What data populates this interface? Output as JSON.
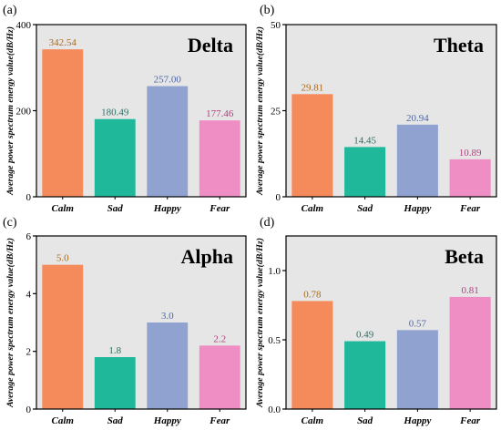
{
  "ylabel": "Average power spectrum energy value(dB/Hz)",
  "colors": {
    "background": "#e6e6e6",
    "bars": [
      "#f58a5b",
      "#1fb89a",
      "#8fa2d0",
      "#ef8ec4"
    ],
    "labels": [
      "#a86a1e",
      "#2d6f64",
      "#4f66a6",
      "#b0407f"
    ]
  },
  "chart_data": [
    {
      "type": "bar",
      "panel_label": "(a)",
      "title": "Delta",
      "categories": [
        "Calm",
        "Sad",
        "Happy",
        "Fear"
      ],
      "values": [
        342.54,
        180.49,
        257.0,
        177.46
      ],
      "value_labels": [
        "342.54",
        "180.49",
        "257.00",
        "177.46"
      ],
      "ylim": [
        0,
        400
      ],
      "yticks": [
        0,
        200,
        400
      ],
      "ytick_labels": [
        "0",
        "200",
        "400"
      ]
    },
    {
      "type": "bar",
      "panel_label": "(b)",
      "title": "Theta",
      "categories": [
        "Calm",
        "Sad",
        "Happy",
        "Fear"
      ],
      "values": [
        29.81,
        14.45,
        20.94,
        10.89
      ],
      "value_labels": [
        "29.81",
        "14.45",
        "20.94",
        "10.89"
      ],
      "ylim": [
        0,
        50
      ],
      "yticks": [
        0,
        25,
        50
      ],
      "ytick_labels": [
        "0",
        "25",
        "50"
      ]
    },
    {
      "type": "bar",
      "panel_label": "(c)",
      "title": "Alpha",
      "categories": [
        "Calm",
        "Sad",
        "Happy",
        "Fear"
      ],
      "values": [
        5.0,
        1.8,
        3.0,
        2.2
      ],
      "value_labels": [
        "5.0",
        "1.8",
        "3.0",
        "2.2"
      ],
      "ylim": [
        0,
        6
      ],
      "yticks": [
        0,
        2,
        4,
        6
      ],
      "ytick_labels": [
        "0",
        "2",
        "4",
        "6"
      ]
    },
    {
      "type": "bar",
      "panel_label": "(d)",
      "title": "Beta",
      "categories": [
        "Calm",
        "Sad",
        "Happy",
        "Fear"
      ],
      "values": [
        0.78,
        0.49,
        0.57,
        0.81
      ],
      "value_labels": [
        "0.78",
        "0.49",
        "0.57",
        "0.81"
      ],
      "ylim": [
        0,
        1.25
      ],
      "yticks": [
        0,
        0.5,
        1.0
      ],
      "ytick_labels": [
        "0.0",
        "0.5",
        "1.0"
      ]
    }
  ]
}
